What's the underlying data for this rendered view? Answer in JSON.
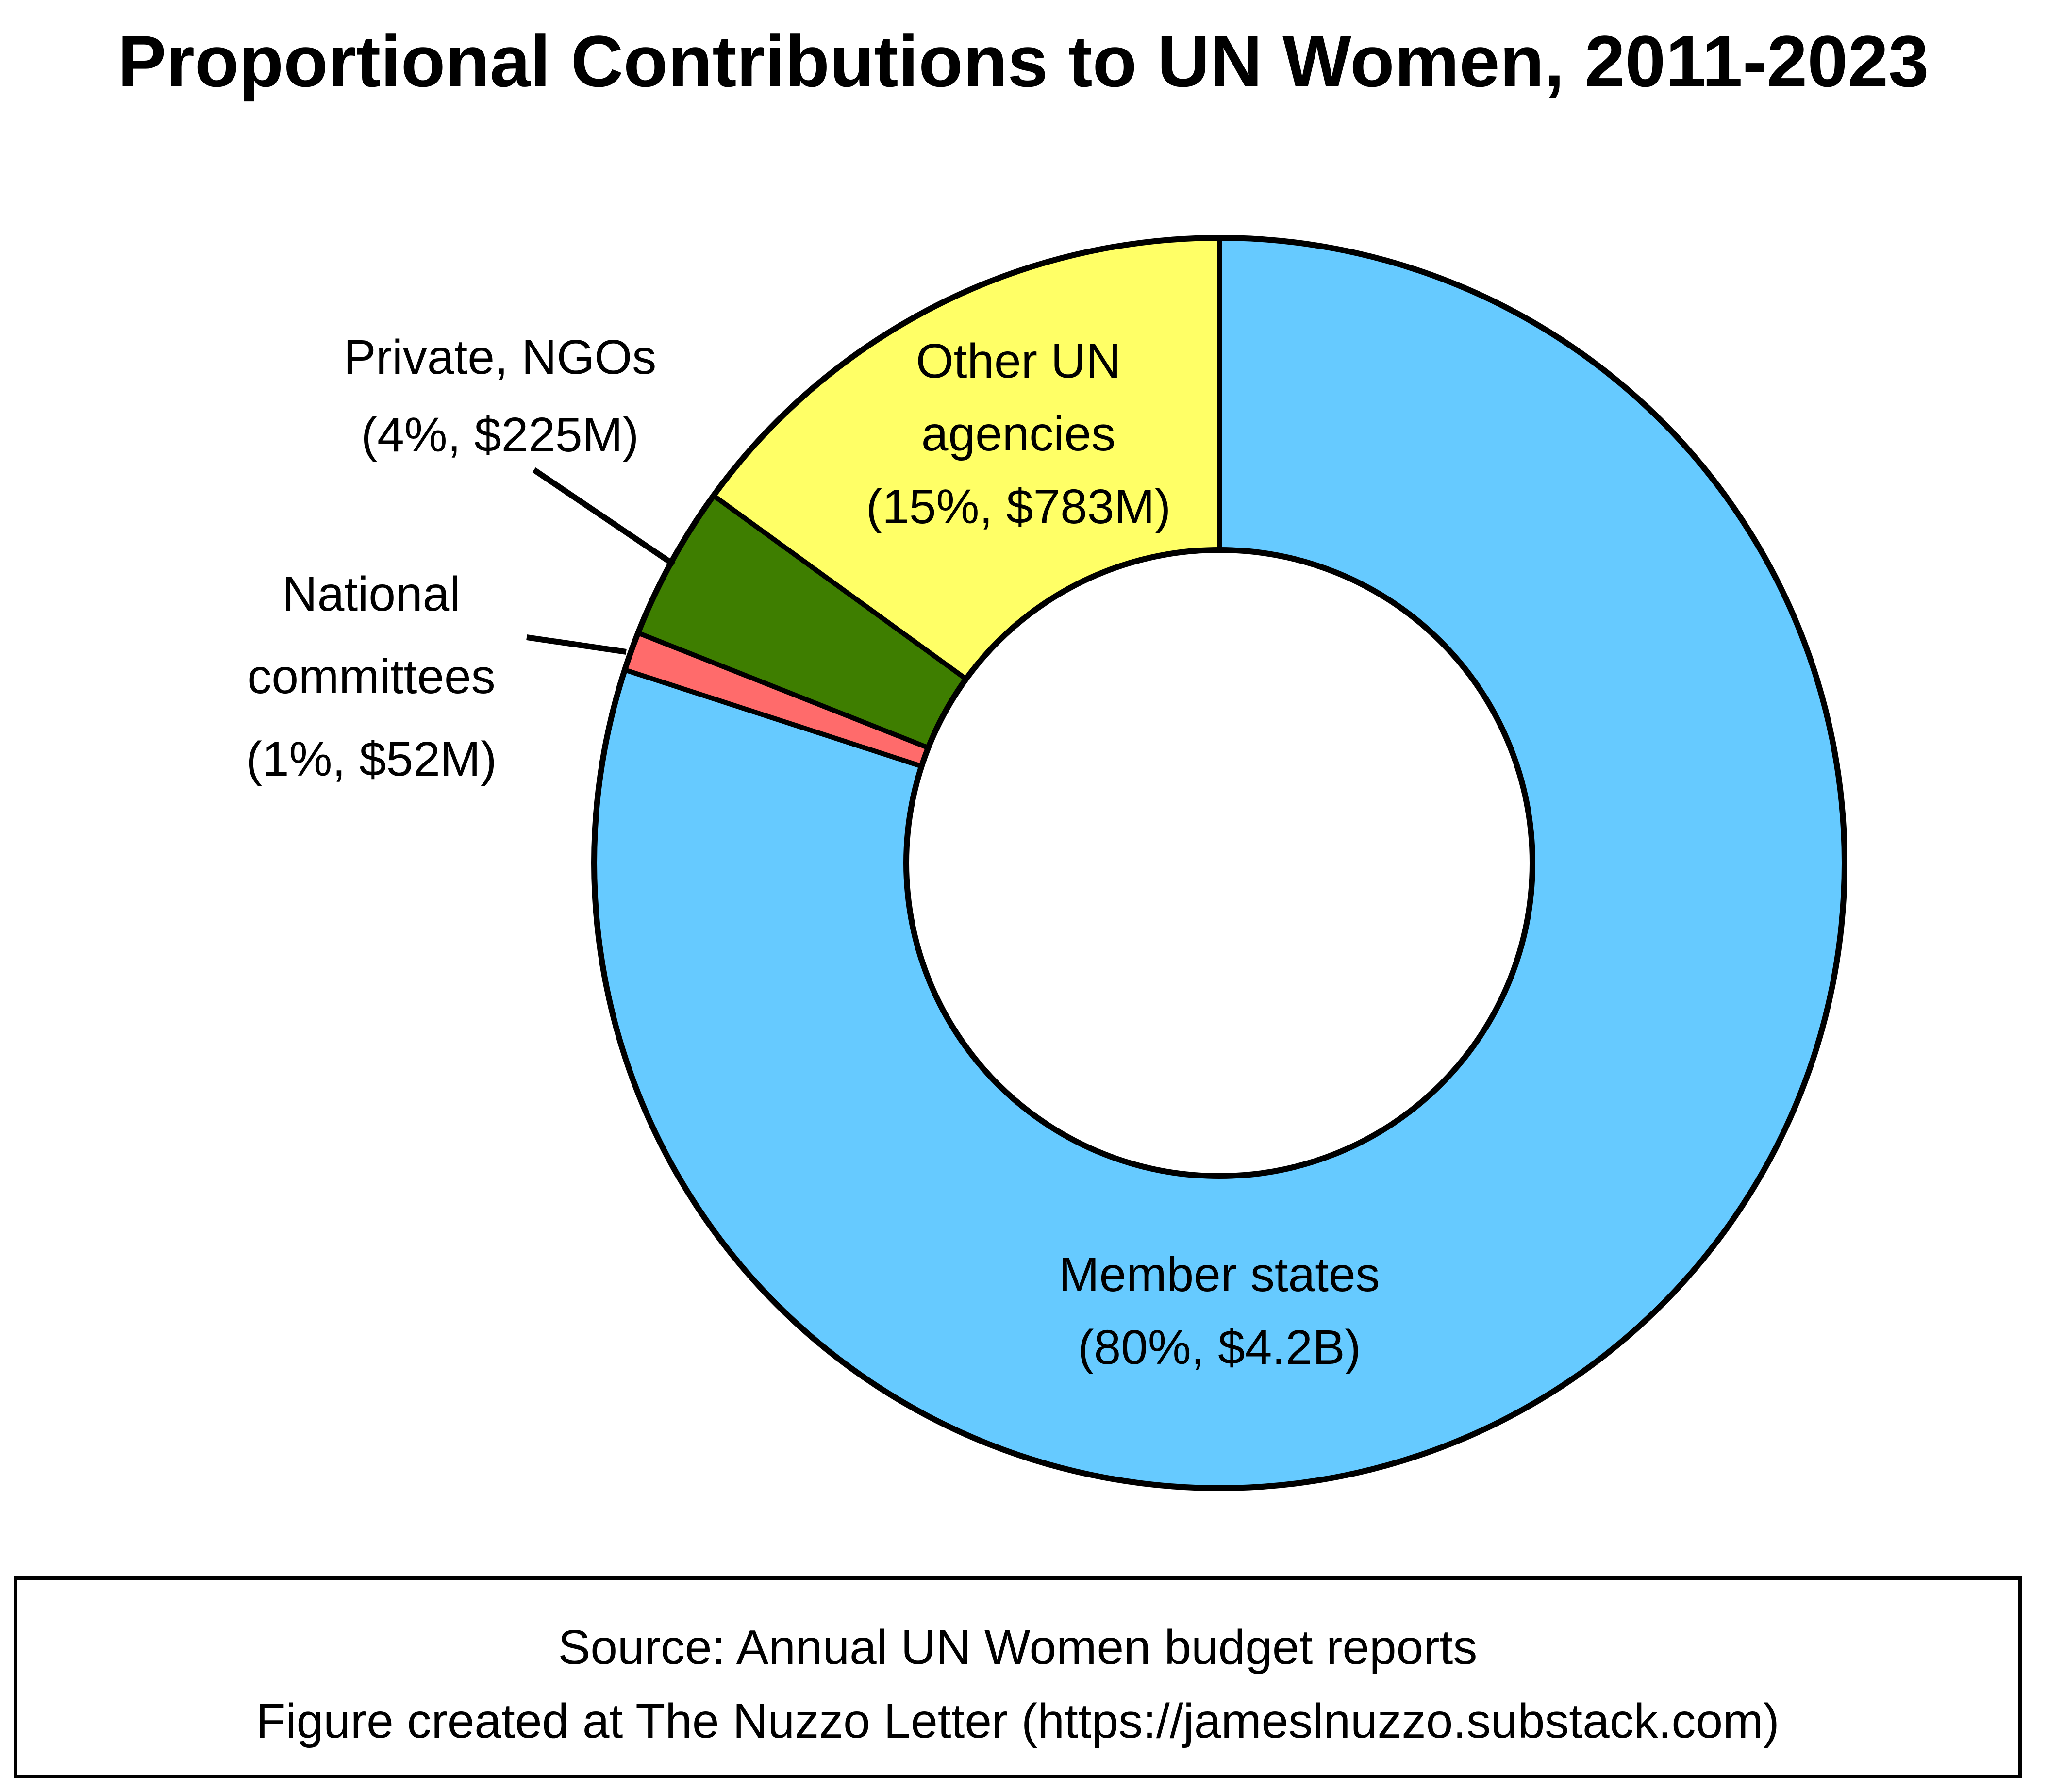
{
  "chart_data": {
    "type": "pie",
    "variant": "donut",
    "title": "Proportional Contributions to UN Women, 2011-2023",
    "slices": [
      {
        "name": "Member states",
        "percent": 80,
        "amount": "$4.2B",
        "label_lines": [
          "Member states",
          "(80%, $4.2B)"
        ],
        "color": "#66CAFF"
      },
      {
        "name": "National committees",
        "percent": 1,
        "amount": "$52M",
        "label_lines": [
          "National",
          "committees",
          "(1%, $52M)"
        ],
        "color": "#FF6B6B"
      },
      {
        "name": "Private, NGOs",
        "percent": 4,
        "amount": "$225M",
        "label_lines": [
          "Private, NGOs",
          "(4%, $225M)"
        ],
        "color": "#3E7E00"
      },
      {
        "name": "Other UN agencies",
        "percent": 15,
        "amount": "$783M",
        "label_lines": [
          "Other UN",
          "agencies",
          "(15%, $783M)"
        ],
        "color": "#FFFF66"
      }
    ],
    "start_angle": "12 o'clock",
    "direction": "clockwise",
    "legend": "none"
  },
  "footer": {
    "source_line": "Source: Annual UN Women budget reports",
    "credit_line": "Figure created at The Nuzzo Letter (https://jameslnuzzo.substack.com)"
  }
}
